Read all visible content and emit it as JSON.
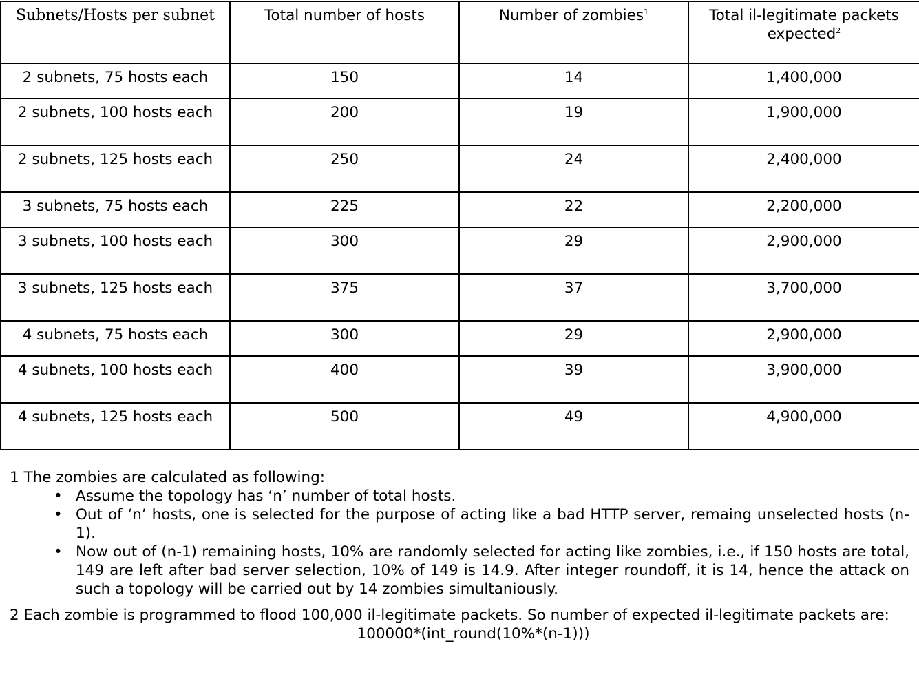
{
  "table": {
    "headers": [
      "Subnets/Hosts per subnet",
      "Total number of hosts",
      "Number of zombies",
      "Total il-legitimate packets expected"
    ],
    "header_superscripts": [
      "",
      "",
      "1",
      "2"
    ],
    "rows": [
      [
        "2 subnets, 75 hosts each",
        "150",
        "14",
        "1,400,000"
      ],
      [
        "2 subnets, 100 hosts each",
        "200",
        "19",
        "1,900,000"
      ],
      [
        "2 subnets, 125 hosts each",
        "250",
        "24",
        "2,400,000"
      ],
      [
        "3 subnets, 75 hosts each",
        "225",
        "22",
        "2,200,000"
      ],
      [
        "3 subnets, 100 hosts each",
        "300",
        "29",
        "2,900,000"
      ],
      [
        "3 subnets, 125 hosts each",
        "375",
        "37",
        "3,700,000"
      ],
      [
        "4 subnets, 75 hosts each",
        "300",
        "29",
        "2,900,000"
      ],
      [
        "4 subnets, 100 hosts each",
        "400",
        "39",
        "3,900,000"
      ],
      [
        "4 subnets, 125 hosts each",
        "500",
        "49",
        "4,900,000"
      ]
    ]
  },
  "notes": {
    "note1_title": "1 The zombies are calculated as following:",
    "bullet_glyph": "•",
    "bullets": [
      "Assume the topology has ‘n’ number of total hosts.",
      "Out of ‘n’ hosts, one is selected for the purpose of acting like a bad HTTP server, remaing unselected hosts (n-1).",
      "Now out of (n-1) remaining hosts, 10% are randomly selected for acting like zombies, i.e., if 150 hosts are total, 149 are left after bad server selection, 10% of 149 is 14.9. After integer roundoff, it is 14, hence the attack on such a topology will be carried out by 14 zombies simultaniously."
    ],
    "note2": "2 Each zombie is programmed to flood 100,000 il-legitimate packets. So number of expected il-legitimate packets are:",
    "formula": "100000*(int_round(10%*(n-1)))"
  }
}
